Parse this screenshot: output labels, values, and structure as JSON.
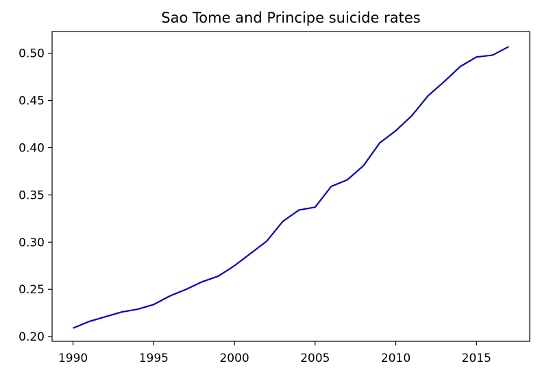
{
  "chart_data": {
    "type": "line",
    "title": "Sao Tome and Principe suicide rates",
    "xlabel": "",
    "ylabel": "",
    "xlim": [
      1988.7,
      2018.3
    ],
    "ylim": [
      0.195,
      0.523
    ],
    "xticks": [
      1990,
      1995,
      2000,
      2005,
      2010,
      2015
    ],
    "yticks": [
      0.2,
      0.25,
      0.3,
      0.35,
      0.4,
      0.45,
      0.5
    ],
    "ytick_labels": [
      "0.20",
      "0.25",
      "0.30",
      "0.35",
      "0.40",
      "0.45",
      "0.50"
    ],
    "grid": false,
    "legend": "none",
    "series": [
      {
        "color": "#0000cc",
        "x": [
          1990,
          1991,
          1992,
          1993,
          1994,
          1995,
          1996,
          1997,
          1998,
          1999,
          2000,
          2001,
          2002,
          2003,
          2004,
          2005,
          2006,
          2007,
          2008,
          2009,
          2010,
          2011,
          2012,
          2013,
          2014,
          2015,
          2016,
          2017
        ],
        "y": [
          0.209,
          0.216,
          0.221,
          0.226,
          0.229,
          0.234,
          0.243,
          0.25,
          0.258,
          0.264,
          0.275,
          0.288,
          0.301,
          0.322,
          0.334,
          0.337,
          0.359,
          0.366,
          0.381,
          0.405,
          0.418,
          0.434,
          0.455,
          0.47,
          0.486,
          0.496,
          0.498,
          0.507
        ]
      }
    ]
  }
}
